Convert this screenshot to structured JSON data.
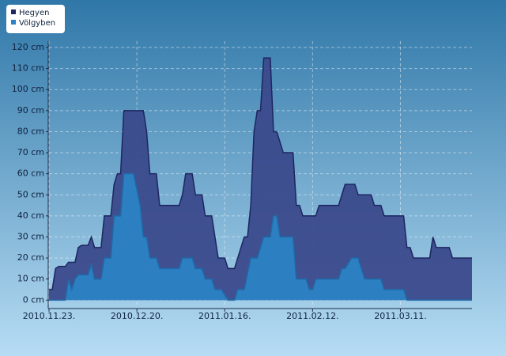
{
  "chart_data": {
    "type": "area",
    "series": [
      {
        "name": "Hegyen",
        "color": "#3b4a8c",
        "x": [
          "2010-11-23",
          "2010-11-24",
          "2010-11-25",
          "2010-11-26",
          "2010-11-28",
          "2010-11-29",
          "2010-12-01",
          "2010-12-02",
          "2010-12-03",
          "2010-12-05",
          "2010-12-06",
          "2010-12-07",
          "2010-12-09",
          "2010-12-10",
          "2010-12-12",
          "2010-12-13",
          "2010-12-14",
          "2010-12-15",
          "2010-12-16",
          "2010-12-22",
          "2010-12-23",
          "2010-12-24",
          "2010-12-26",
          "2010-12-27",
          "2011-01-02",
          "2011-01-03",
          "2011-01-04",
          "2011-01-06",
          "2011-01-07",
          "2011-01-09",
          "2011-01-10",
          "2011-01-12",
          "2011-01-14",
          "2011-01-16",
          "2011-01-17",
          "2011-01-19",
          "2011-01-22",
          "2011-01-23",
          "2011-01-24",
          "2011-01-25",
          "2011-01-26",
          "2011-01-27",
          "2011-01-28",
          "2011-01-30",
          "2011-01-31",
          "2011-02-01",
          "2011-02-03",
          "2011-02-06",
          "2011-02-07",
          "2011-02-08",
          "2011-02-09",
          "2011-02-13",
          "2011-02-14",
          "2011-02-20",
          "2011-02-21",
          "2011-02-22",
          "2011-02-25",
          "2011-02-26",
          "2011-03-02",
          "2011-03-03",
          "2011-03-05",
          "2011-03-06",
          "2011-03-12",
          "2011-03-13",
          "2011-03-14",
          "2011-03-15",
          "2011-03-20",
          "2011-03-21",
          "2011-03-22",
          "2011-03-26",
          "2011-03-27",
          "2011-04-02"
        ],
        "values": [
          5,
          5,
          15,
          16,
          16,
          18,
          18,
          25,
          26,
          26,
          30,
          25,
          25,
          40,
          40,
          55,
          60,
          60,
          90,
          90,
          80,
          60,
          60,
          45,
          45,
          50,
          60,
          60,
          50,
          50,
          40,
          40,
          20,
          20,
          15,
          15,
          30,
          30,
          45,
          80,
          90,
          90,
          115,
          115,
          80,
          80,
          70,
          70,
          45,
          45,
          40,
          40,
          45,
          45,
          50,
          55,
          55,
          50,
          50,
          45,
          45,
          40,
          40,
          25,
          25,
          20,
          20,
          30,
          25,
          25,
          20,
          20
        ]
      },
      {
        "name": "Völgyben",
        "color": "#2b82c4",
        "x": [
          "2010-11-23",
          "2010-11-28",
          "2010-11-29",
          "2010-11-30",
          "2010-12-01",
          "2010-12-02",
          "2010-12-05",
          "2010-12-06",
          "2010-12-07",
          "2010-12-09",
          "2010-12-10",
          "2010-12-12",
          "2010-12-13",
          "2010-12-15",
          "2010-12-16",
          "2010-12-19",
          "2010-12-21",
          "2010-12-22",
          "2010-12-23",
          "2010-12-24",
          "2010-12-26",
          "2010-12-27",
          "2011-01-02",
          "2011-01-03",
          "2011-01-06",
          "2011-01-07",
          "2011-01-09",
          "2011-01-10",
          "2011-01-12",
          "2011-01-13",
          "2011-01-15",
          "2011-01-17",
          "2011-01-19",
          "2011-01-20",
          "2011-01-22",
          "2011-01-24",
          "2011-01-26",
          "2011-01-28",
          "2011-01-30",
          "2011-01-31",
          "2011-02-01",
          "2011-02-02",
          "2011-02-06",
          "2011-02-07",
          "2011-02-10",
          "2011-02-11",
          "2011-02-12",
          "2011-02-13",
          "2011-02-20",
          "2011-02-21",
          "2011-02-22",
          "2011-02-24",
          "2011-02-26",
          "2011-02-28",
          "2011-03-05",
          "2011-03-06",
          "2011-03-12",
          "2011-03-13",
          "2011-04-02"
        ],
        "values": [
          0,
          0,
          10,
          5,
          10,
          12,
          12,
          17,
          10,
          10,
          20,
          20,
          40,
          40,
          60,
          60,
          45,
          30,
          30,
          20,
          20,
          15,
          15,
          20,
          20,
          15,
          15,
          10,
          10,
          5,
          5,
          0,
          0,
          5,
          5,
          20,
          20,
          30,
          30,
          40,
          40,
          30,
          30,
          10,
          10,
          5,
          5,
          10,
          10,
          15,
          15,
          20,
          20,
          10,
          10,
          5,
          5,
          0,
          0
        ]
      }
    ],
    "xlim": [
      "2010-11-23",
      "2011-04-02"
    ],
    "xticks": [
      {
        "value": "2010-11-23",
        "label": "2010.11.23."
      },
      {
        "value": "2010-12-20",
        "label": "2010.12.20."
      },
      {
        "value": "2011-01-16",
        "label": "2011.01.16."
      },
      {
        "value": "2011-02-12",
        "label": "2011.02.12."
      },
      {
        "value": "2011-03-11",
        "label": "2011.03.11."
      }
    ],
    "ylim": [
      -4,
      123
    ],
    "yticks": [
      {
        "value": 0,
        "label": "0 cm"
      },
      {
        "value": 10,
        "label": "10 cm"
      },
      {
        "value": 20,
        "label": "20 cm"
      },
      {
        "value": 30,
        "label": "30 cm"
      },
      {
        "value": 40,
        "label": "40 cm"
      },
      {
        "value": 50,
        "label": "50 cm"
      },
      {
        "value": 60,
        "label": "60 cm"
      },
      {
        "value": 70,
        "label": "70 cm"
      },
      {
        "value": 80,
        "label": "80 cm"
      },
      {
        "value": 90,
        "label": "90 cm"
      },
      {
        "value": 100,
        "label": "100 cm"
      },
      {
        "value": 110,
        "label": "110 cm"
      },
      {
        "value": 120,
        "label": "120 cm"
      }
    ],
    "grid": true,
    "legend": "top-left"
  }
}
